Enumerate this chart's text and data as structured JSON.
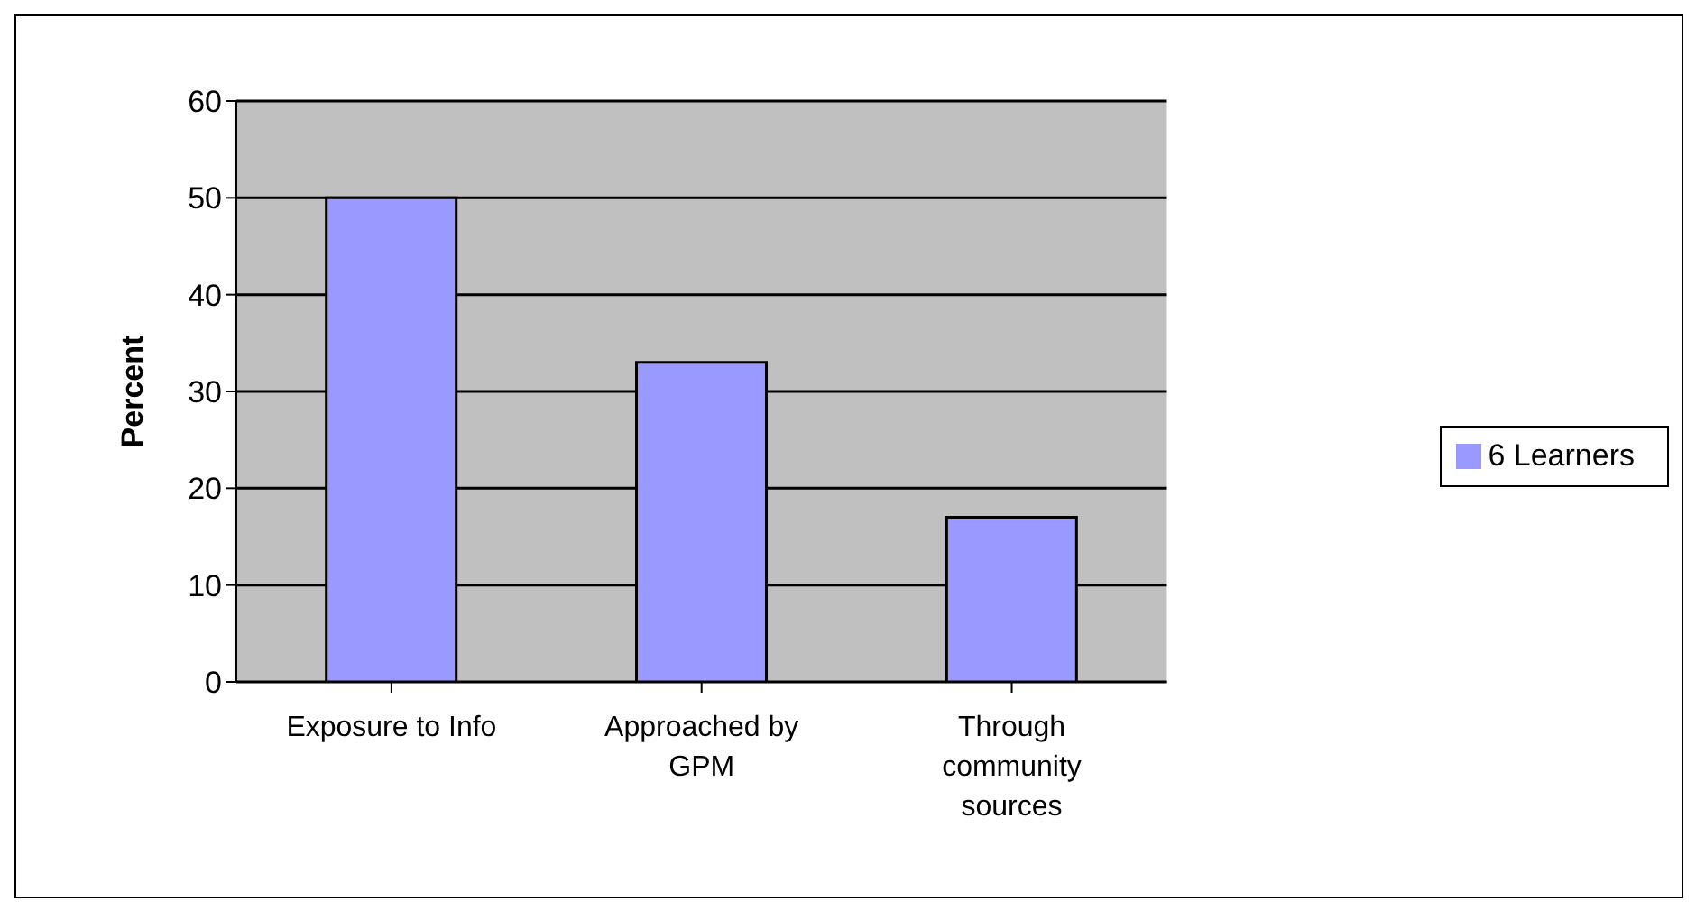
{
  "chart_data": {
    "type": "bar",
    "ylabel": "Percent",
    "categories": [
      "Exposure to Info",
      "Approached by GPM",
      "Through community sources"
    ],
    "series": [
      {
        "name": "6 Learners",
        "color": "#9999ff",
        "values": [
          50,
          33,
          17
        ]
      }
    ],
    "ylim": [
      0,
      60
    ],
    "yticks": [
      0,
      10,
      20,
      30,
      40,
      50,
      60
    ],
    "grid": "y",
    "legend": "right"
  }
}
